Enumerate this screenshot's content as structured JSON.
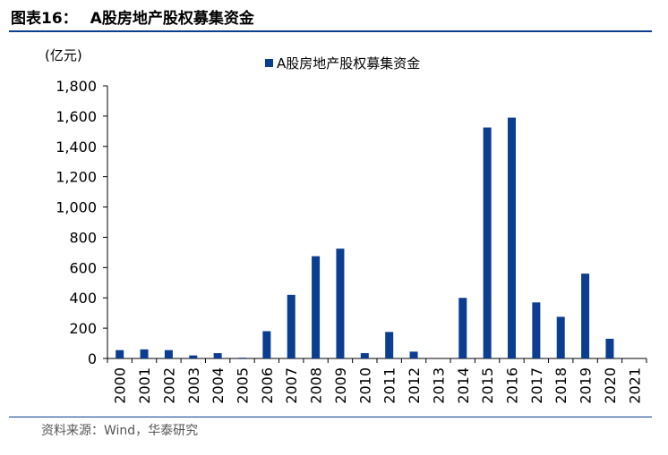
{
  "figure": {
    "number": "图表16：",
    "title": "A股房地产股权募集资金",
    "source": "资料来源：Wind，华泰研究"
  },
  "colors": {
    "bar": "#0b3d91",
    "rule": "#0b3d91",
    "axis": "#000000"
  },
  "chart_data": {
    "type": "bar",
    "title": "A股房地产股权募集资金",
    "ylabel": "(亿元)",
    "xlabel": "",
    "ylim": [
      0,
      1800
    ],
    "yticks": [
      0,
      200,
      400,
      600,
      800,
      1000,
      1200,
      1400,
      1600,
      1800
    ],
    "ytick_labels": [
      "0",
      "200",
      "400",
      "600",
      "800",
      "1,000",
      "1,200",
      "1,400",
      "1,600",
      "1,800"
    ],
    "legend": "top-center",
    "grid": false,
    "categories": [
      "2000",
      "2001",
      "2002",
      "2003",
      "2004",
      "2005",
      "2006",
      "2007",
      "2008",
      "2009",
      "2010",
      "2011",
      "2012",
      "2013",
      "2014",
      "2015",
      "2016",
      "2017",
      "2018",
      "2019",
      "2020",
      "2021"
    ],
    "series": [
      {
        "name": "A股房地产股权募集资金",
        "values": [
          55,
          60,
          55,
          20,
          35,
          5,
          180,
          420,
          675,
          725,
          35,
          175,
          45,
          0,
          400,
          1525,
          1590,
          370,
          275,
          560,
          130,
          0
        ]
      }
    ]
  }
}
